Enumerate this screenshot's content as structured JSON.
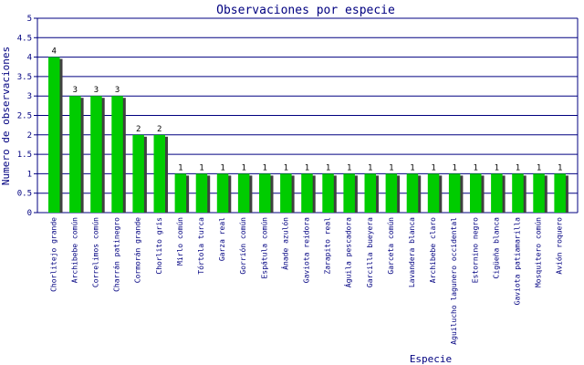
{
  "chart_data": {
    "type": "bar",
    "title": "Observaciones por especie",
    "xlabel": "Especie",
    "ylabel": "Numero de observaciones",
    "ylim": [
      0,
      5
    ],
    "yticks": [
      "0",
      "0.5",
      "1",
      "1.5",
      "2",
      "2.5",
      "3",
      "3.5",
      "4",
      "4.5",
      "5"
    ],
    "grid": true,
    "legend": "none",
    "categories": [
      "Chorlitejo grande",
      "Archibebe común",
      "Correlimos común",
      "Charrán patinegro",
      "Cormorán grande",
      "Chorlito gris",
      "Mirlo común",
      "Tórtola turca",
      "Garza real",
      "Gorrión común",
      "Espátula común",
      "Ánade azulón",
      "Gaviota reidora",
      "Zarapito real",
      "Águila pescadora",
      "Garcilla bueyera",
      "Garceta común",
      "Lavandera blanca",
      "Archibebe claro",
      "Aguilucho lagunero occidental",
      "Estornino negro",
      "Cigüeña blanca",
      "Gaviota patiamarilla",
      "Mosquitero común",
      "Avión roquero"
    ],
    "values": [
      4,
      3,
      3,
      3,
      2,
      2,
      1,
      1,
      1,
      1,
      1,
      1,
      1,
      1,
      1,
      1,
      1,
      1,
      1,
      1,
      1,
      1,
      1,
      1,
      1
    ],
    "data_labels": [
      "4",
      "3",
      "3",
      "3",
      "2",
      "2",
      "1",
      "1",
      "1",
      "1",
      "1",
      "1",
      "1",
      "1",
      "1",
      "1",
      "1",
      "1",
      "1",
      "1",
      "1",
      "1",
      "1",
      "1",
      "1"
    ],
    "colors": {
      "bar": "#00cc00",
      "shadow": "#404040",
      "grid": "#000080",
      "text": "#000080"
    }
  }
}
